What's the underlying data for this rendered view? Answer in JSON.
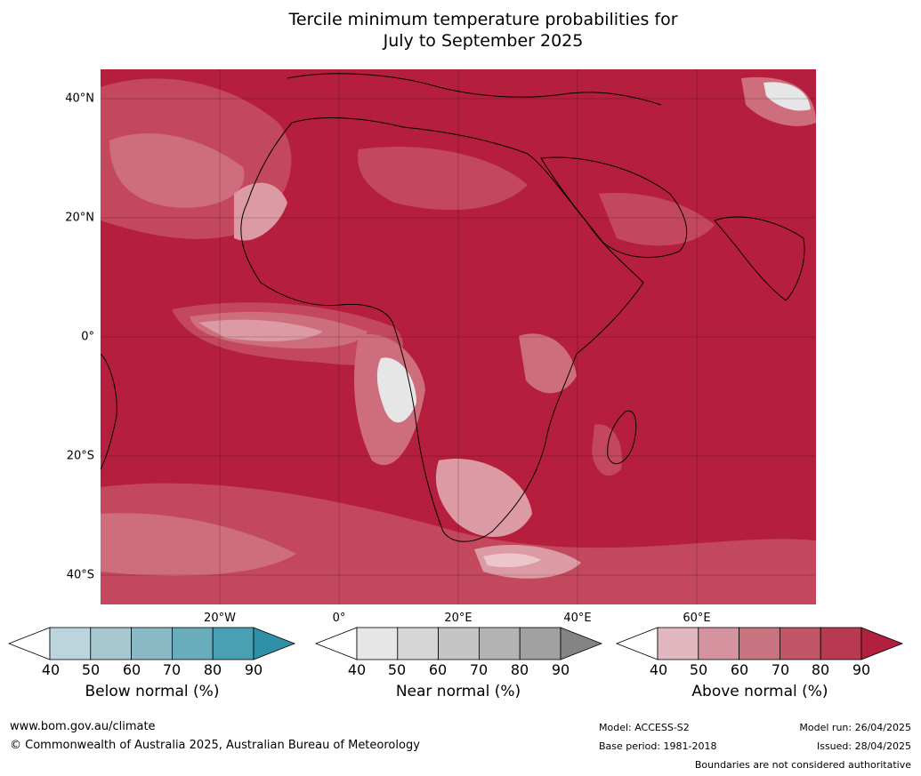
{
  "title_line1": "Tercile minimum temperature probabilities for",
  "title_line2": "July to September 2025",
  "lat_labels": [
    "40°N",
    "20°N",
    "0°",
    "20°S",
    "40°S"
  ],
  "lon_labels": [
    "20°W",
    "0°",
    "20°E",
    "40°E",
    "60°E"
  ],
  "colorbars": [
    {
      "label": "Below normal (%)",
      "ticks": [
        "40",
        "50",
        "60",
        "70",
        "80",
        "90"
      ],
      "colors": [
        "#ffffff",
        "#bcd5dc",
        "#a8c8cf",
        "#8ab8c4",
        "#69acbb",
        "#4aa0b3",
        "#2f8fa7"
      ]
    },
    {
      "label": "Near normal (%)",
      "ticks": [
        "40",
        "50",
        "60",
        "70",
        "80",
        "90"
      ],
      "colors": [
        "#ffffff",
        "#e6e6e6",
        "#d6d6d6",
        "#c5c5c5",
        "#b3b3b3",
        "#a1a1a1",
        "#848484"
      ]
    },
    {
      "label": "Above normal (%)",
      "ticks": [
        "40",
        "50",
        "60",
        "70",
        "80",
        "90"
      ],
      "colors": [
        "#ffffff",
        "#e2b7bf",
        "#d5939f",
        "#c97380",
        "#c15666",
        "#b73a50",
        "#b2203f"
      ]
    }
  ],
  "map_colors": {
    "ocean_land_high": "#b51e3d",
    "band1": "#c3485d",
    "band2": "#ce6d7c",
    "band3": "#dc9aa5",
    "band4": "#ecc6cd",
    "near": "#e6e6e6"
  },
  "footer": {
    "website": "www.bom.gov.au/climate",
    "copyright": "© Commonwealth of Australia 2025, Australian Bureau of Meteorology",
    "model": "Model: ACCESS-S2",
    "base_period": "Base period: 1981-2018",
    "model_run": "Model run: 26/04/2025",
    "issued": "Issued: 28/04/2025",
    "disclaimer": "Boundaries are not considered authoritative"
  }
}
